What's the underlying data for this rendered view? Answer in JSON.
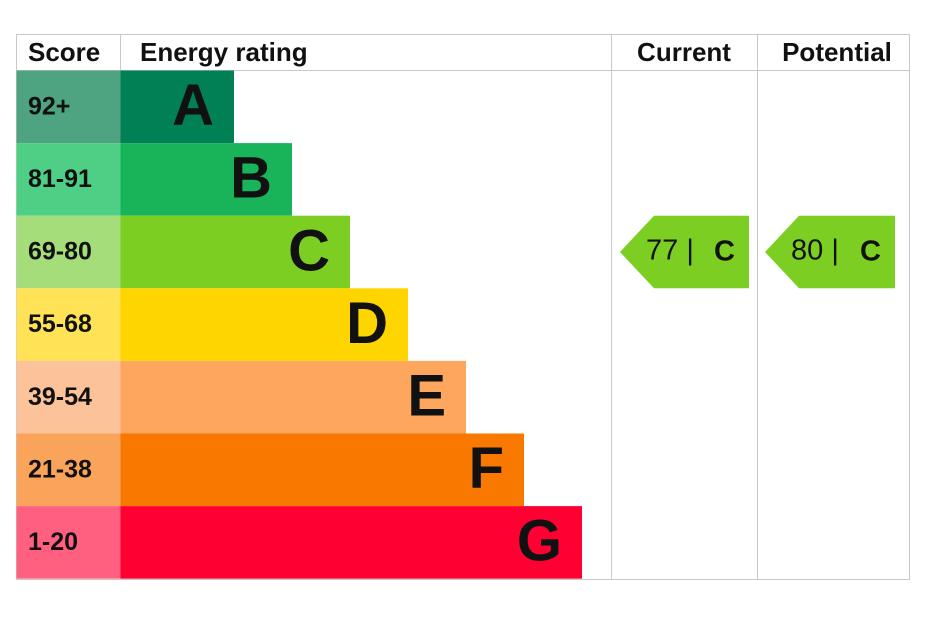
{
  "header": {
    "score": "Score",
    "rating": "Energy rating",
    "current": "Current",
    "potential": "Potential"
  },
  "rows": [
    {
      "score": "92+",
      "band": "A",
      "color": "#008054",
      "light": "#4ea381"
    },
    {
      "score": "81-91",
      "band": "B",
      "color": "#19b459",
      "light": "#4fcf86"
    },
    {
      "score": "69-80",
      "band": "C",
      "color": "#7cce22",
      "light": "#a4dd7a"
    },
    {
      "score": "55-68",
      "band": "D",
      "color": "#ffd500",
      "light": "#ffe256"
    },
    {
      "score": "39-54",
      "band": "E",
      "color": "#fca65e",
      "light": "#fcc39b"
    },
    {
      "score": "21-38",
      "band": "F",
      "color": "#f97800",
      "light": "#f9a35b"
    },
    {
      "score": "1-20",
      "band": "G",
      "color": "#ff0033",
      "light": "#ff6080"
    }
  ],
  "current": {
    "score_label": "77 |",
    "band": "C"
  },
  "potential": {
    "score_label": "80 |",
    "band": "C"
  }
}
